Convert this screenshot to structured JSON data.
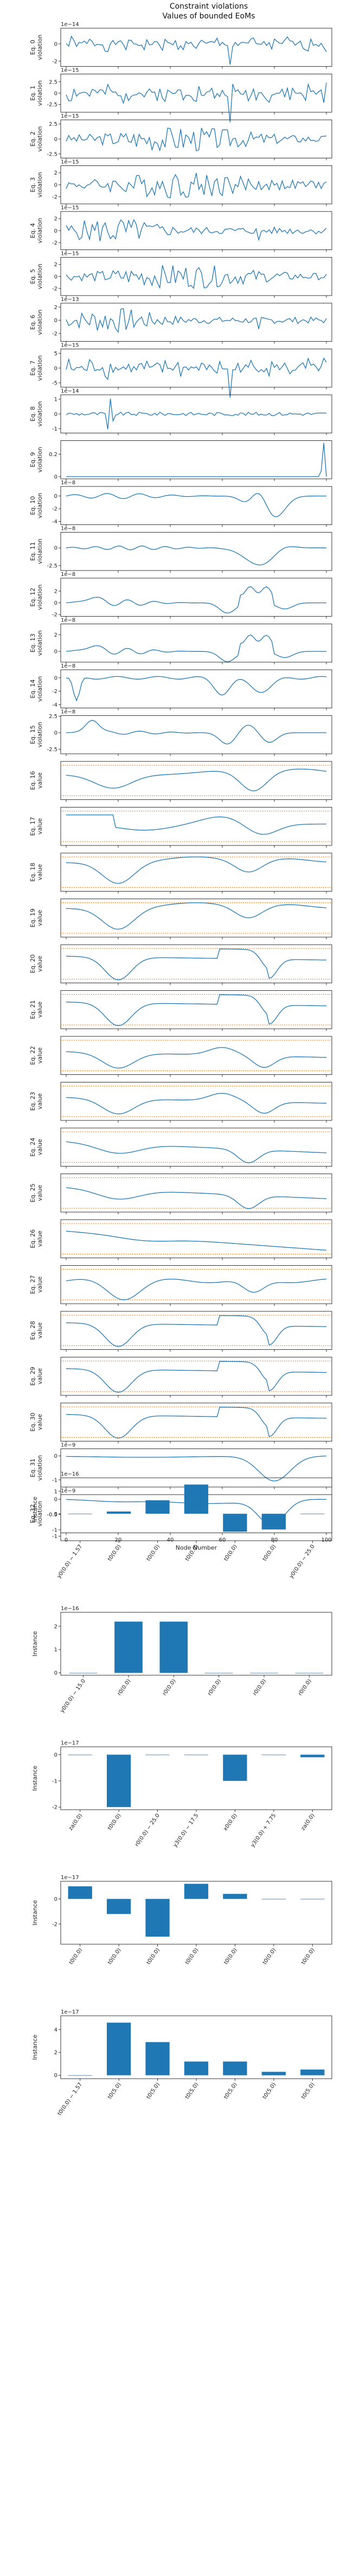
{
  "figure_title": [
    "Constraint violations",
    "Values of bounded EoMs"
  ],
  "line_color": "#1f77b4",
  "bound_color": "#ff7f0e",
  "chart_data": [
    {
      "type": "line",
      "ylabel": "Eq. 0\nviolation",
      "scale_label": "1e−14",
      "ylim": [
        -2.6,
        1.8
      ],
      "yticks": [
        -2,
        0
      ],
      "pattern": "noise",
      "amp": 1.2,
      "seed": 1
    },
    {
      "type": "line",
      "ylabel": "Eq. 1\nviolation",
      "scale_label": "1e−15",
      "ylim": [
        -4.2,
        4.2
      ],
      "yticks": [
        -2.5,
        0.0,
        2.5
      ],
      "pattern": "noise",
      "amp": 3.2,
      "seed": 2
    },
    {
      "type": "line",
      "ylabel": "Eq. 2\nviolation",
      "scale_label": "1e−15",
      "ylim": [
        -3.2,
        3.2
      ],
      "yticks": [
        -2.5,
        0.0,
        2.5
      ],
      "pattern": "noise_mid",
      "amp": 2.4,
      "seed": 3
    },
    {
      "type": "line",
      "ylabel": "Eq. 3\nviolation",
      "scale_label": "1e−15",
      "ylim": [
        -3.2,
        3.2
      ],
      "yticks": [
        -2,
        0,
        2
      ],
      "pattern": "noise_mid",
      "amp": 2.6,
      "seed": 4
    },
    {
      "type": "line",
      "ylabel": "Eq. 4\nviolation",
      "scale_label": "1e−15",
      "ylim": [
        -3.2,
        3.2
      ],
      "yticks": [
        -2,
        0,
        2
      ],
      "pattern": "noise_left",
      "amp": 2.6,
      "seed": 5
    },
    {
      "type": "line",
      "ylabel": "Eq. 5\nviolation",
      "scale_label": "1e−15",
      "ylim": [
        -3.2,
        3.2
      ],
      "yticks": [
        -2,
        0,
        2
      ],
      "pattern": "noise_mid",
      "amp": 2.3,
      "seed": 6
    },
    {
      "type": "line",
      "ylabel": "Eq. 6\nviolation",
      "scale_label": "1e−13",
      "ylim": [
        -3.2,
        2.6
      ],
      "yticks": [
        -2,
        0,
        2
      ],
      "pattern": "noise_left",
      "amp": 2.2,
      "seed": 7
    },
    {
      "type": "line",
      "ylabel": "Eq. 7\nviolation",
      "scale_label": "1e−15",
      "ylim": [
        -6.5,
        6.5
      ],
      "yticks": [
        -5,
        0,
        5
      ],
      "pattern": "noise",
      "amp": 5.0,
      "seed": 8
    },
    {
      "type": "line",
      "ylabel": "Eq. 8\nviolation",
      "scale_label": "1e−14",
      "ylim": [
        -1.3,
        1.3
      ],
      "yticks": [
        -1,
        0,
        1
      ],
      "pattern": "noise_spike",
      "amp": 0.8,
      "seed": 9
    },
    {
      "type": "line",
      "ylabel": "Eq. 9\nviolation",
      "scale_label": "",
      "ylim": [
        -0.02,
        0.32
      ],
      "yticks": [
        0.0,
        0.2
      ],
      "pattern": "end_spike",
      "amp": 0.3,
      "seed": 10
    },
    {
      "type": "line",
      "ylabel": "Eq. 10\nviolation",
      "scale_label": "1e−8",
      "ylim": [
        -4.5,
        1.5
      ],
      "yticks": [
        -4,
        -2,
        0
      ],
      "pattern": "smooth_a",
      "amp": 3.5,
      "seed": 11
    },
    {
      "type": "line",
      "ylabel": "Eq. 11\nviolation",
      "scale_label": "1e−8",
      "ylim": [
        -3.2,
        2.2
      ],
      "yticks": [
        -2.5,
        0.0
      ],
      "pattern": "smooth_b",
      "amp": 2.8,
      "seed": 12
    },
    {
      "type": "line",
      "ylabel": "Eq. 12\nviolation",
      "scale_label": "1e−8",
      "ylim": [
        -2.3,
        4.2
      ],
      "yticks": [
        -2,
        0,
        2
      ],
      "pattern": "smooth_c",
      "amp": 3.5,
      "seed": 13
    },
    {
      "type": "line",
      "ylabel": "Eq. 13\nviolation",
      "scale_label": "1e−8",
      "ylim": [
        -1.3,
        3.3
      ],
      "yticks": [
        0,
        2
      ],
      "pattern": "smooth_c",
      "amp": 2.5,
      "seed": 14
    },
    {
      "type": "line",
      "ylabel": "Eq. 14\nviolation",
      "scale_label": "1e−8",
      "ylim": [
        -4.5,
        1.2
      ],
      "yticks": [
        -4,
        -2,
        0
      ],
      "pattern": "smooth_d",
      "amp": 4.0,
      "seed": 15
    },
    {
      "type": "line",
      "ylabel": "Eq. 15\nviolation",
      "scale_label": "1e−8",
      "ylim": [
        -3.2,
        2.6
      ],
      "yticks": [
        -2.5,
        0.0,
        2.5
      ],
      "pattern": "smooth_e",
      "amp": 2.5,
      "seed": 16
    },
    {
      "type": "line",
      "ylabel": "Eq. 16\nvalue",
      "scale_label": "",
      "ylim": [
        0.1,
        1.1
      ],
      "yticks": [],
      "pattern": "bounded_a",
      "bounded": true,
      "seed": 17
    },
    {
      "type": "line",
      "ylabel": "Eq. 17\nvalue",
      "scale_label": "",
      "ylim": [
        0.1,
        1.1
      ],
      "yticks": [],
      "pattern": "bounded_b",
      "bounded": true,
      "seed": 18
    },
    {
      "type": "line",
      "ylabel": "Eq. 18\nvalue",
      "scale_label": "",
      "ylim": [
        0.1,
        1.1
      ],
      "yticks": [],
      "pattern": "bounded_c",
      "bounded": true,
      "seed": 19
    },
    {
      "type": "line",
      "ylabel": "Eq. 19\nvalue",
      "scale_label": "",
      "ylim": [
        0.1,
        1.1
      ],
      "yticks": [],
      "pattern": "bounded_c",
      "bounded": true,
      "seed": 20
    },
    {
      "type": "line",
      "ylabel": "Eq. 20\nvalue",
      "scale_label": "",
      "ylim": [
        0.1,
        1.1
      ],
      "yticks": [],
      "pattern": "bounded_d",
      "bounded": true,
      "seed": 21
    },
    {
      "type": "line",
      "ylabel": "Eq. 21\nvalue",
      "scale_label": "",
      "ylim": [
        0.1,
        1.1
      ],
      "yticks": [],
      "pattern": "bounded_d",
      "bounded": true,
      "seed": 22
    },
    {
      "type": "line",
      "ylabel": "Eq. 22\nvalue",
      "scale_label": "",
      "ylim": [
        0.1,
        1.1
      ],
      "yticks": [],
      "pattern": "bounded_e",
      "bounded": true,
      "seed": 23
    },
    {
      "type": "line",
      "ylabel": "Eq. 23\nvalue",
      "scale_label": "",
      "ylim": [
        0.1,
        1.1
      ],
      "yticks": [],
      "pattern": "bounded_e",
      "bounded": true,
      "seed": 24
    },
    {
      "type": "line",
      "ylabel": "Eq. 24\nvalue",
      "scale_label": "",
      "ylim": [
        0.1,
        1.1
      ],
      "yticks": [],
      "pattern": "bounded_f",
      "bounded": true,
      "seed": 25
    },
    {
      "type": "line",
      "ylabel": "Eq. 25\nvalue",
      "scale_label": "",
      "ylim": [
        0.1,
        1.1
      ],
      "yticks": [],
      "pattern": "bounded_f",
      "bounded": true,
      "seed": 26
    },
    {
      "type": "line",
      "ylabel": "Eq. 26\nvalue",
      "scale_label": "",
      "ylim": [
        0.1,
        1.1
      ],
      "yticks": [],
      "pattern": "bounded_g",
      "bounded": true,
      "seed": 27
    },
    {
      "type": "line",
      "ylabel": "Eq. 27\nvalue",
      "scale_label": "",
      "ylim": [
        0.1,
        1.1
      ],
      "yticks": [],
      "pattern": "bounded_h",
      "bounded": true,
      "seed": 28
    },
    {
      "type": "line",
      "ylabel": "Eq. 28\nvalue",
      "scale_label": "",
      "ylim": [
        0.1,
        1.1
      ],
      "yticks": [],
      "pattern": "bounded_d",
      "bounded": true,
      "seed": 29
    },
    {
      "type": "line",
      "ylabel": "Eq. 29\nvalue",
      "scale_label": "",
      "ylim": [
        0.1,
        1.1
      ],
      "yticks": [],
      "pattern": "bounded_d",
      "bounded": true,
      "seed": 30
    },
    {
      "type": "line",
      "ylabel": "Eq. 30\nvalue",
      "scale_label": "",
      "ylim": [
        0.1,
        1.1
      ],
      "yticks": [],
      "pattern": "bounded_d",
      "bounded": true,
      "seed": 31
    },
    {
      "type": "line",
      "ylabel": "Eq. 31\nviolation",
      "scale_label": "1e−9",
      "ylim": [
        -1.3,
        0.3
      ],
      "yticks": [
        -1,
        0
      ],
      "pattern": "dip_a",
      "amp": 1.1,
      "seed": 32
    },
    {
      "type": "line",
      "ylabel": "Eq. 32\nviolation",
      "scale_label": "1e−9",
      "ylim": [
        -1.1,
        0.15
      ],
      "yticks": [
        -1.0,
        -0.5,
        0.0
      ],
      "pattern": "dip_b",
      "amp": 0.95,
      "seed": 33,
      "xlabel": "Node Number",
      "xticks": [
        0,
        20,
        40,
        60,
        80,
        100
      ],
      "show_xticks": true
    },
    {
      "type": "bar",
      "ylabel": "Instance",
      "scale_label": "1e−16",
      "ylim": [
        -1.2,
        1.6
      ],
      "yticks": [
        -1,
        0,
        1
      ],
      "categories": [
        "y0(0.0) − 1.57",
        "t0(0.0)",
        "t0(0.0)",
        "t0(0.0)",
        "t0(0.0)",
        "t0(0.0)",
        "y0(0.0) − 25.0"
      ],
      "values": [
        0.0,
        0.1,
        0.6,
        1.3,
        -0.8,
        -0.7,
        0.0
      ]
    },
    {
      "type": "bar",
      "ylabel": "Instance",
      "scale_label": "1e−16",
      "ylim": [
        -0.1,
        2.6
      ],
      "yticks": [
        0,
        1,
        2
      ],
      "categories": [
        "y0(0.0) − 15.0",
        "r0(0.0)",
        "r0(0.0)",
        "r0(0.0)",
        "r0(0.0)",
        "r0(0.0)"
      ],
      "values": [
        0.0,
        2.2,
        2.2,
        0.0,
        0.0,
        0.0
      ]
    },
    {
      "type": "bar",
      "ylabel": "Instance",
      "scale_label": "1e−17",
      "ylim": [
        -2.1,
        0.3
      ],
      "yticks": [
        -2,
        -1,
        0
      ],
      "categories": [
        "za(0.0)",
        "t0(0.0)",
        "r0(0.0) − 25.0",
        "y3(0.0) − 17.5",
        "x0(0.0)",
        "y3(0.0) + 7.75",
        "za(0.0)"
      ],
      "values": [
        0.0,
        -2.0,
        0.0,
        0.0,
        -1.0,
        0.0,
        -0.1
      ]
    },
    {
      "type": "bar",
      "ylabel": "Instance",
      "scale_label": "1e−17",
      "ylim": [
        -3.6,
        1.4
      ],
      "yticks": [
        -2,
        0
      ],
      "categories": [
        "t0(0.0)",
        "t0(0.0)",
        "t0(0.0)",
        "t0(0.0)",
        "t0(0.0)",
        "t0(0.0)",
        "t0(0.0)"
      ],
      "values": [
        1.0,
        -1.2,
        -3.0,
        1.2,
        0.4,
        0.0,
        0.0
      ]
    },
    {
      "type": "bar",
      "ylabel": "Instance",
      "scale_label": "1e−17",
      "ylim": [
        -0.3,
        5.2
      ],
      "yticks": [
        0,
        2,
        4
      ],
      "categories": [
        "t0(0.0) − 1.57",
        "t0(5.0)",
        "t0(5.0)",
        "t0(5.0)",
        "t0(5.0)",
        "t0(5.0)",
        "t0(5.0)"
      ],
      "values": [
        0.0,
        4.6,
        2.9,
        1.2,
        1.2,
        0.3,
        0.5
      ]
    }
  ]
}
